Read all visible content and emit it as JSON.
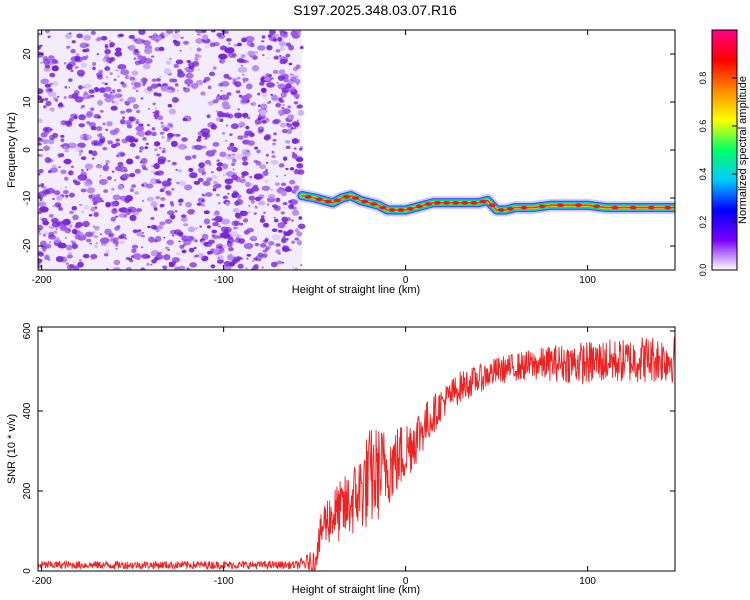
{
  "page": {
    "title": "S197.2025.348.03.07.R16"
  },
  "colors": {
    "snr_line": "#ee2222",
    "noise_palette": [
      "#7a22d6",
      "#9a55e8",
      "#b88cf0",
      "#d6bff7"
    ],
    "colorbar_stops": [
      "#ffffff",
      "#7a00ff",
      "#0000ff",
      "#00ccff",
      "#00ff66",
      "#ffff00",
      "#ff8800",
      "#ff0000",
      "#ff0088"
    ]
  },
  "chart_data": [
    {
      "type": "heatmap",
      "title": "S197.2025.348.03.07.R16",
      "xlabel": "Height of straight line (km)",
      "ylabel": "Frequency (Hz)",
      "xlim": [
        -202,
        148
      ],
      "ylim": [
        -25,
        25
      ],
      "x_ticks": [
        "-200",
        "-100",
        "0",
        "100"
      ],
      "y_ticks": [
        "-20",
        "-10",
        "0",
        "10",
        "20"
      ],
      "colorbar": {
        "label": "Normalized spectral amplitude",
        "range": [
          0,
          1
        ],
        "ticks": [
          "0.0",
          "0.2",
          "0.4",
          "0.6",
          "0.8"
        ]
      },
      "noise_region_x": [
        -202,
        -57
      ],
      "signal_track": {
        "x": [
          -57,
          -50,
          -45,
          -40,
          -35,
          -30,
          -25,
          -20,
          -15,
          -10,
          -5,
          0,
          5,
          10,
          15,
          20,
          25,
          30,
          35,
          40,
          45,
          50,
          55,
          60,
          70,
          80,
          90,
          100,
          110,
          120,
          130,
          140,
          148
        ],
        "frequency": [
          -9.5,
          -10,
          -10.5,
          -11,
          -10,
          -9.5,
          -10.5,
          -11,
          -11.5,
          -12.5,
          -12.5,
          -12.5,
          -12,
          -11.5,
          -11,
          -11,
          -11,
          -11,
          -11,
          -11,
          -10.5,
          -12.5,
          -12.5,
          -12,
          -12,
          -11.5,
          -11.5,
          -11.5,
          -12,
          -12,
          -12,
          -12,
          -12
        ]
      }
    },
    {
      "type": "line",
      "xlabel": "Height of straight line (km)",
      "ylabel": "SNR (10 * v/v)",
      "xlim": [
        -202,
        148
      ],
      "ylim": [
        0,
        610
      ],
      "x_ticks": [
        "-200",
        "-100",
        "0",
        "100"
      ],
      "y_ticks": [
        "0",
        "200",
        "400",
        "600"
      ],
      "series": [
        {
          "x": [
            -202,
            -150,
            -100,
            -60,
            -50,
            -45,
            -40,
            -35,
            -30,
            -25,
            -20,
            -15,
            -10,
            -5,
            0,
            5,
            10,
            15,
            20,
            25,
            30,
            40,
            50,
            60,
            70,
            80,
            90,
            100,
            110,
            120,
            130,
            140,
            148
          ],
          "y": [
            15,
            15,
            15,
            15,
            25,
            120,
            140,
            150,
            170,
            200,
            230,
            245,
            260,
            275,
            300,
            330,
            360,
            390,
            420,
            440,
            460,
            480,
            500,
            510,
            515,
            520,
            520,
            520,
            525,
            525,
            530,
            530,
            530
          ],
          "amp": [
            10,
            10,
            10,
            10,
            30,
            60,
            70,
            80,
            90,
            100,
            130,
            120,
            100,
            90,
            80,
            70,
            60,
            50,
            40,
            40,
            40,
            35,
            35,
            35,
            40,
            45,
            50,
            55,
            55,
            55,
            60,
            60,
            60
          ]
        }
      ]
    }
  ]
}
